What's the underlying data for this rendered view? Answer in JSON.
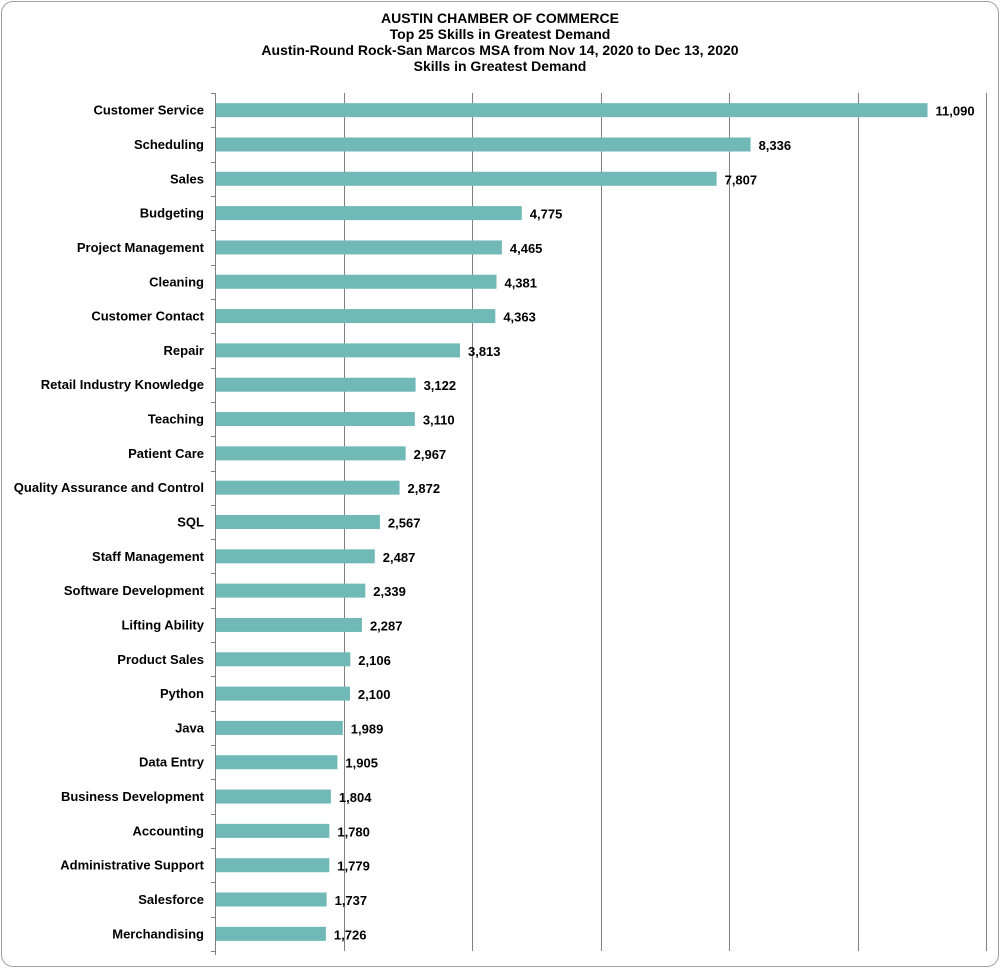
{
  "chart_data": {
    "type": "bar",
    "orientation": "horizontal",
    "title_lines": [
      "AUSTIN CHAMBER OF COMMERCE",
      "Top 25 Skills in Greatest Demand",
      "Austin-Round Rock-San Marcos MSA from Nov 14, 2020 to Dec 13, 2020",
      "Skills in Greatest Demand"
    ],
    "categories": [
      "Customer Service",
      "Scheduling",
      "Sales",
      "Budgeting",
      "Project Management",
      "Cleaning",
      "Customer Contact",
      "Repair",
      "Retail Industry Knowledge",
      "Teaching",
      "Patient Care",
      "Quality Assurance and Control",
      "SQL",
      "Staff Management",
      "Software Development",
      "Lifting Ability",
      "Product Sales",
      "Python",
      "Java",
      "Data Entry",
      "Business Development",
      "Accounting",
      "Administrative Support",
      "Salesforce",
      "Merchandising"
    ],
    "values": [
      11090,
      8336,
      7807,
      4775,
      4465,
      4381,
      4363,
      3813,
      3122,
      3110,
      2967,
      2872,
      2567,
      2487,
      2339,
      2287,
      2106,
      2100,
      1989,
      1905,
      1804,
      1780,
      1779,
      1737,
      1726
    ],
    "value_labels": [
      "11,090",
      "8,336",
      "7,807",
      "4,775",
      "4,465",
      "4,381",
      "4,363",
      "3,813",
      "3,122",
      "3,110",
      "2,967",
      "2,872",
      "2,567",
      "2,487",
      "2,339",
      "2,287",
      "2,106",
      "2,100",
      "1,989",
      "1,905",
      "1,804",
      "1,780",
      "1,779",
      "1,737",
      "1,726"
    ],
    "xlim": [
      0,
      12000
    ],
    "grid_step": 2000,
    "grid": true,
    "legend": "none",
    "bar_color": "#70b9b6"
  }
}
